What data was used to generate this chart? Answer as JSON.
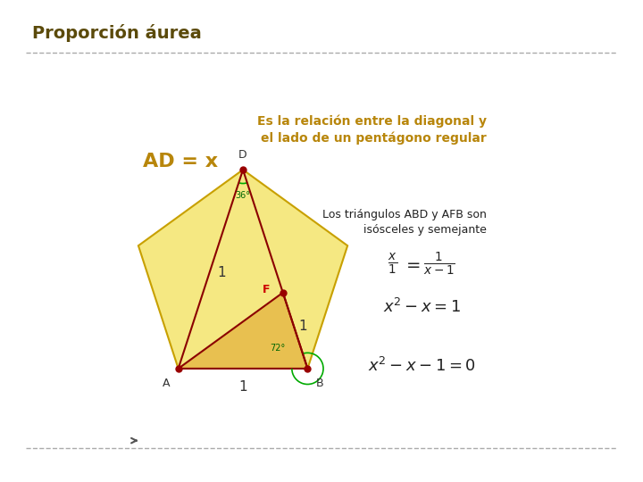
{
  "title": "Proporción áurea",
  "title_color": "#5B4A0A",
  "title_fontsize": 14,
  "bg_color": "#FFFFFF",
  "pentagon_fill": "#F5E882",
  "pentagon_edge": "#C8A000",
  "triangle_fill": "#E8C050",
  "dark_red": "#8B0000",
  "dot_color": "#990000",
  "label_color_ad": "#B8860B",
  "text_color_right": "#B8860B",
  "text_color_black": "#222222",
  "angle_arc_color": "#00AA00",
  "subtitle_right": "Es la relación entre la diagonal y\nel lado de un pentágono regular",
  "label_AD": "AD = x",
  "label_D": "D",
  "label_A": "A",
  "label_B": "B",
  "label_F": "F",
  "angle_36": "36°",
  "angle_72": "72°",
  "label_1_left": "1",
  "label_1_bottom": "1",
  "label_1_mid": "1",
  "text_triangles": "Los triángulos ABD y AFB son\nisósceles y semejante",
  "formula1_num": "x",
  "formula1_den": "1",
  "formula1_eq": "=",
  "formula2_num": "1",
  "formula2_den": "x – 1",
  "eq2": "x² – x = 1",
  "eq3": "x² – x – 1 = 0"
}
